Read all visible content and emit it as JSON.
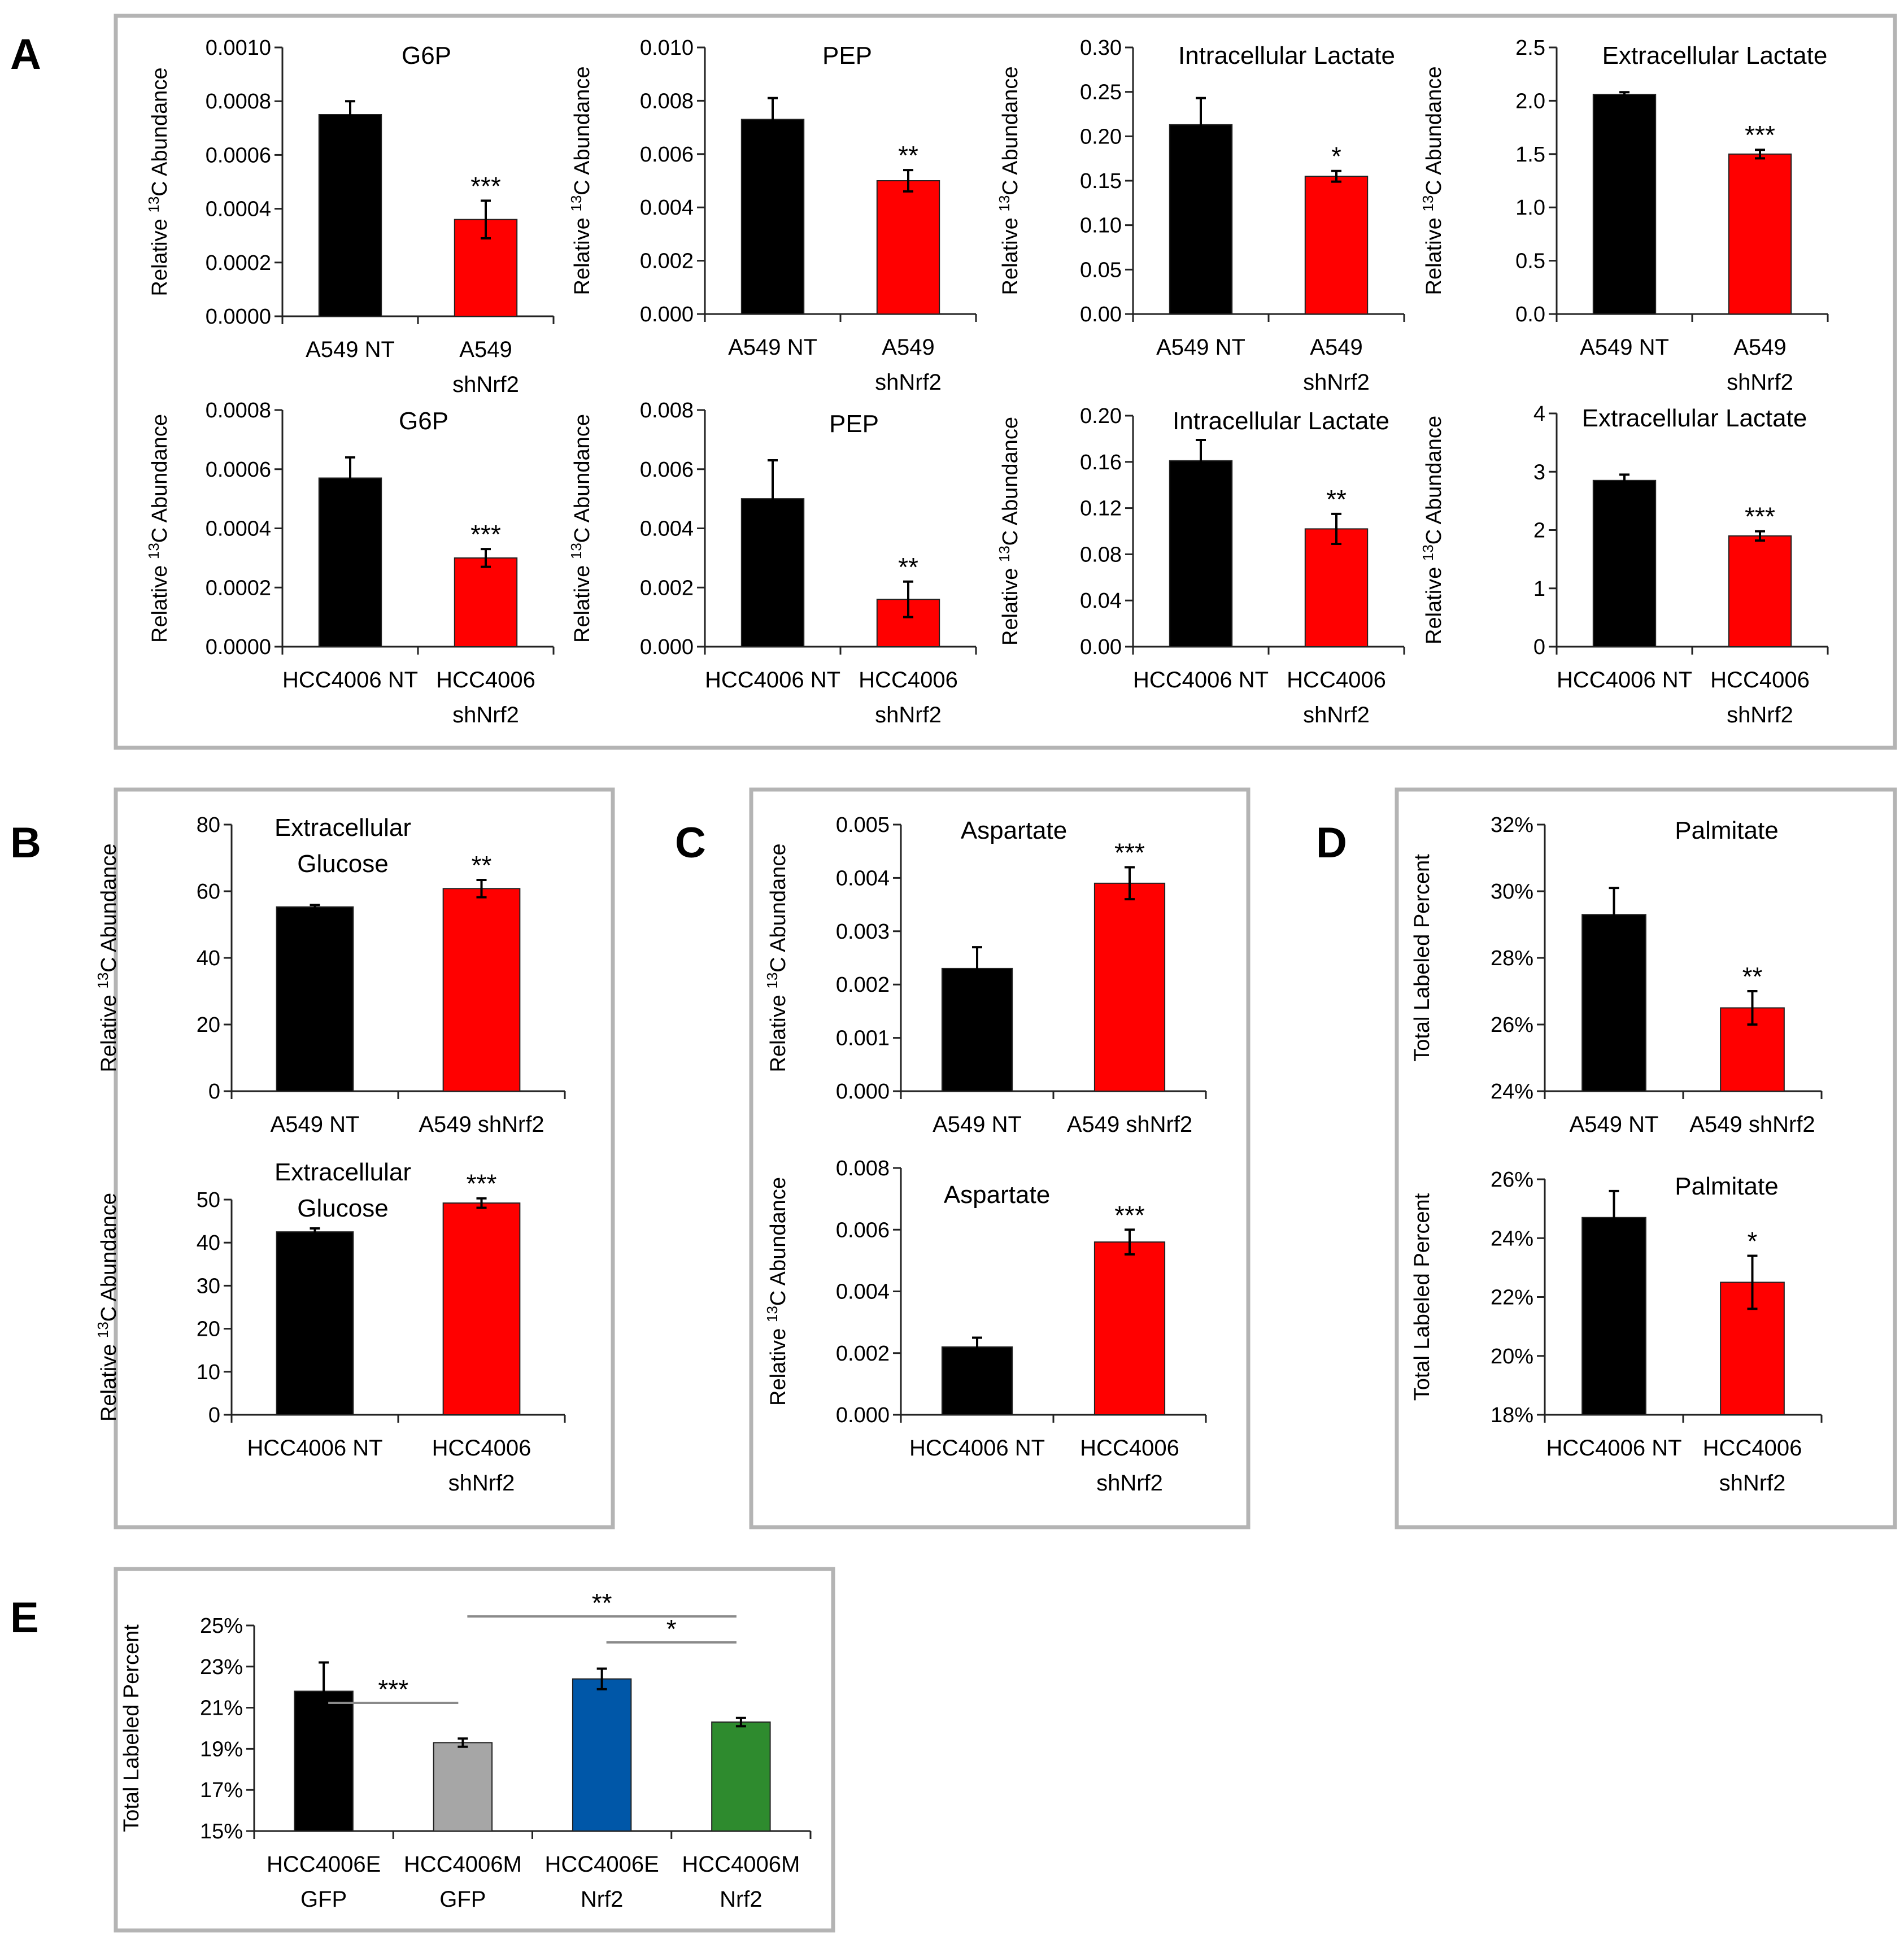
{
  "panels": [
    {
      "letter": "A"
    },
    {
      "letter": "B"
    },
    {
      "letter": "C"
    },
    {
      "letter": "D"
    },
    {
      "letter": "E"
    }
  ],
  "colors": {
    "black": "#000000",
    "red": "#ff0000",
    "gray": "#a6a6a6",
    "blue": "#0057a8",
    "green": "#2e8b2e"
  },
  "ylabel_parts": {
    "relative": "Relative",
    "isotope": "13",
    "carbon": "C",
    "abundance": "Abundance",
    "total_labeled": "Total Labeled Percent"
  },
  "chart_data": [
    {
      "id": "A1",
      "panel": "A",
      "type": "bar",
      "title": "G6P",
      "categories": [
        "A549 NT",
        "A549 shNrf2"
      ],
      "values": [
        0.00075,
        0.00036
      ],
      "errors": [
        5e-05,
        7e-05
      ],
      "colors": [
        "black",
        "red"
      ],
      "sig": [
        "",
        "***"
      ],
      "ylim": [
        0,
        0.001
      ],
      "yticks": [
        "0.0000",
        "0.0002",
        "0.0004",
        "0.0006",
        "0.0008",
        "0.0010"
      ],
      "ylabel": "Relative 13C Abundance"
    },
    {
      "id": "A2",
      "panel": "A",
      "type": "bar",
      "title": "PEP",
      "categories": [
        "A549 NT",
        "A549 shNrf2"
      ],
      "values": [
        0.0073,
        0.005
      ],
      "errors": [
        0.0008,
        0.0004
      ],
      "colors": [
        "black",
        "red"
      ],
      "sig": [
        "",
        "**"
      ],
      "ylim": [
        0,
        0.01
      ],
      "yticks": [
        "0.000",
        "0.002",
        "0.004",
        "0.006",
        "0.008",
        "0.010"
      ],
      "ylabel": "Relative 13C Abundance"
    },
    {
      "id": "A3",
      "panel": "A",
      "type": "bar",
      "title": "Intracellular Lactate",
      "categories": [
        "A549 NT",
        "A549 shNrf2"
      ],
      "values": [
        0.213,
        0.155
      ],
      "errors": [
        0.03,
        0.006
      ],
      "colors": [
        "black",
        "red"
      ],
      "sig": [
        "",
        "*"
      ],
      "ylim": [
        0,
        0.3
      ],
      "yticks": [
        "0.00",
        "0.05",
        "0.10",
        "0.15",
        "0.20",
        "0.25",
        "0.30"
      ],
      "ylabel": "Relative 13C Abundance"
    },
    {
      "id": "A4",
      "panel": "A",
      "type": "bar",
      "title": "Extracellular Lactate",
      "categories": [
        "A549 NT",
        "A549 shNrf2"
      ],
      "values": [
        2.06,
        1.5
      ],
      "errors": [
        0.02,
        0.04
      ],
      "colors": [
        "black",
        "red"
      ],
      "sig": [
        "",
        "***"
      ],
      "ylim": [
        0,
        2.5
      ],
      "yticks": [
        "0.0",
        "0.5",
        "1.0",
        "1.5",
        "2.0",
        "2.5"
      ],
      "ylabel": "Relative 13C Abundance"
    },
    {
      "id": "A5",
      "panel": "A",
      "type": "bar",
      "title": "G6P",
      "categories": [
        "HCC4006 NT",
        "HCC4006 shNrf2"
      ],
      "values": [
        0.00057,
        0.0003
      ],
      "errors": [
        7e-05,
        3e-05
      ],
      "colors": [
        "black",
        "red"
      ],
      "sig": [
        "",
        "***"
      ],
      "ylim": [
        0,
        0.0008
      ],
      "yticks": [
        "0.0000",
        "0.0002",
        "0.0004",
        "0.0006",
        "0.0008"
      ],
      "ylabel": "Relative 13C Abundance"
    },
    {
      "id": "A6",
      "panel": "A",
      "type": "bar",
      "title": "PEP",
      "categories": [
        "HCC4006 NT",
        "HCC4006 shNrf2"
      ],
      "values": [
        0.005,
        0.0016
      ],
      "errors": [
        0.0013,
        0.0006
      ],
      "colors": [
        "black",
        "red"
      ],
      "sig": [
        "",
        "**"
      ],
      "ylim": [
        0,
        0.008
      ],
      "yticks": [
        "0.000",
        "0.002",
        "0.004",
        "0.006",
        "0.008"
      ],
      "ylabel": "Relative 13C Abundance"
    },
    {
      "id": "A7",
      "panel": "A",
      "type": "bar",
      "title": "Intracellular Lactate",
      "categories": [
        "HCC4006 NT",
        "HCC4006 shNrf2"
      ],
      "values": [
        0.161,
        0.102
      ],
      "errors": [
        0.018,
        0.013
      ],
      "colors": [
        "black",
        "red"
      ],
      "sig": [
        "",
        "**"
      ],
      "ylim": [
        0,
        0.2
      ],
      "yticks": [
        "0.00",
        "0.04",
        "0.08",
        "0.12",
        "0.16",
        "0.20"
      ],
      "ylabel": "Relative 13C Abundance"
    },
    {
      "id": "A8",
      "panel": "A",
      "type": "bar",
      "title": "Extracellular Lactate",
      "categories": [
        "HCC4006 NT",
        "HCC4006 shNrf2"
      ],
      "values": [
        2.85,
        1.9
      ],
      "errors": [
        0.1,
        0.08
      ],
      "colors": [
        "black",
        "red"
      ],
      "sig": [
        "",
        "***"
      ],
      "ylim": [
        0,
        4
      ],
      "yticks": [
        "0",
        "1",
        "2",
        "3",
        "4"
      ],
      "ylabel": "Relative 13C Abundance"
    },
    {
      "id": "B1",
      "panel": "B",
      "type": "bar",
      "title": "Extracellular Glucose",
      "title_lines": [
        "Extracellular",
        "Glucose"
      ],
      "categories": [
        "A549 NT",
        "A549 shNrf2"
      ],
      "values": [
        55.3,
        60.8
      ],
      "errors": [
        0.6,
        2.6
      ],
      "colors": [
        "black",
        "red"
      ],
      "sig": [
        "",
        "**"
      ],
      "ylim": [
        0,
        80
      ],
      "yticks": [
        "0",
        "20",
        "40",
        "60",
        "80"
      ],
      "ylabel": "Relative 13C Abundance"
    },
    {
      "id": "B2",
      "panel": "B",
      "type": "bar",
      "title": "Extracellular Glucose",
      "title_lines": [
        "Extracellular",
        "Glucose"
      ],
      "categories": [
        "HCC4006 NT",
        "HCC4006 shNrf2"
      ],
      "values": [
        42.5,
        49.2
      ],
      "errors": [
        0.8,
        1.1
      ],
      "colors": [
        "black",
        "red"
      ],
      "sig": [
        "",
        "***"
      ],
      "ylim": [
        0,
        50
      ],
      "yticks": [
        "0",
        "10",
        "20",
        "30",
        "40",
        "50"
      ],
      "ylabel": "Relative 13C Abundance"
    },
    {
      "id": "C1",
      "panel": "C",
      "type": "bar",
      "title": "Aspartate",
      "categories": [
        "A549 NT",
        "A549 shNrf2"
      ],
      "values": [
        0.0023,
        0.0039
      ],
      "errors": [
        0.0004,
        0.0003
      ],
      "colors": [
        "black",
        "red"
      ],
      "sig": [
        "",
        "***"
      ],
      "ylim": [
        0,
        0.005
      ],
      "yticks": [
        "0.000",
        "0.001",
        "0.002",
        "0.003",
        "0.004",
        "0.005"
      ],
      "ylabel": "Relative 13C Abundance"
    },
    {
      "id": "C2",
      "panel": "C",
      "type": "bar",
      "title": "Aspartate",
      "categories": [
        "HCC4006 NT",
        "HCC4006 shNrf2"
      ],
      "values": [
        0.0022,
        0.0056
      ],
      "errors": [
        0.0003,
        0.0004
      ],
      "colors": [
        "black",
        "red"
      ],
      "sig": [
        "",
        "***"
      ],
      "ylim": [
        0,
        0.008
      ],
      "yticks": [
        "0.000",
        "0.002",
        "0.004",
        "0.006",
        "0.008"
      ],
      "ylabel": "Relative 13C Abundance"
    },
    {
      "id": "D1",
      "panel": "D",
      "type": "bar",
      "title": "Palmitate",
      "categories": [
        "A549 NT",
        "A549 shNrf2"
      ],
      "values": [
        29.3,
        26.5
      ],
      "errors": [
        0.8,
        0.5
      ],
      "colors": [
        "black",
        "red"
      ],
      "sig": [
        "",
        "**"
      ],
      "ylim": [
        24,
        32
      ],
      "yticks": [
        "24%",
        "26%",
        "28%",
        "30%",
        "32%"
      ],
      "ylabel": "Total Labeled Percent"
    },
    {
      "id": "D2",
      "panel": "D",
      "type": "bar",
      "title": "Palmitate",
      "categories": [
        "HCC4006 NT",
        "HCC4006 shNrf2"
      ],
      "values": [
        24.7,
        22.5
      ],
      "errors": [
        0.9,
        0.9
      ],
      "colors": [
        "black",
        "red"
      ],
      "sig": [
        "",
        "*"
      ],
      "ylim": [
        18,
        26
      ],
      "yticks": [
        "18%",
        "20%",
        "22%",
        "24%",
        "26%"
      ],
      "ylabel": "Total Labeled Percent"
    },
    {
      "id": "E1",
      "panel": "E",
      "type": "bar",
      "title": "",
      "categories": [
        "HCC4006E GFP",
        "HCC4006M GFP",
        "HCC4006E Nrf2",
        "HCC4006M Nrf2"
      ],
      "values": [
        21.8,
        19.3,
        22.4,
        20.3
      ],
      "errors": [
        1.4,
        0.2,
        0.5,
        0.2
      ],
      "colors": [
        "black",
        "gray",
        "blue",
        "green"
      ],
      "ylim": [
        15,
        25
      ],
      "yticks": [
        "15%",
        "17%",
        "19%",
        "21%",
        "23%",
        "25%"
      ],
      "ylabel": "Total Labeled Percent",
      "brackets": [
        {
          "from": 0,
          "to": 1,
          "label": "***"
        },
        {
          "from": 1,
          "to": 3,
          "label": "**"
        },
        {
          "from": 2,
          "to": 3,
          "label": "*"
        }
      ]
    }
  ]
}
